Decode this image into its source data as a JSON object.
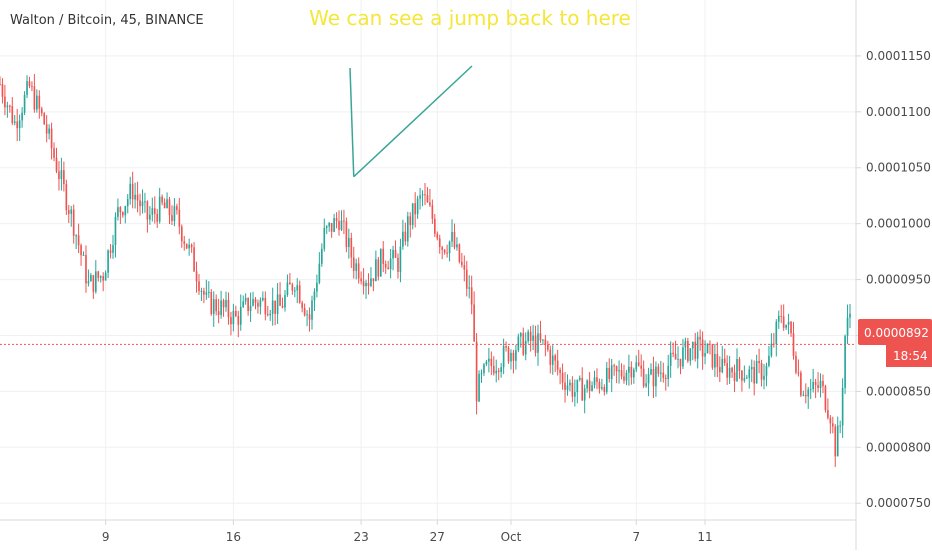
{
  "header": {
    "symbol_title": "Walton / Bitcoin, 45, BINANCE"
  },
  "annotation": {
    "text": "We can see a jump back to here",
    "color": "#f5e63a",
    "arrow_color": "#3aa596"
  },
  "price_scale": {
    "current_price_label": "0.0000892",
    "countdown_label": "18:54",
    "current_price": 8.92e-05,
    "label_bg": "#ef5350",
    "line_color": "#ef5350"
  },
  "colors": {
    "up": "#26a69a",
    "down": "#ef5350",
    "grid": "#eef0f3",
    "axis_text": "#4a4a4a",
    "divider": "#d6d8dc"
  },
  "chart_data": {
    "type": "candlestick",
    "title": "Walton / Bitcoin, 45, BINANCE",
    "x_tick_labels": [
      "9",
      "16",
      "23",
      "27",
      "Oct",
      "7",
      "11"
    ],
    "y_tick_labels": [
      "0.0001150",
      "0.0001100",
      "0.0001050",
      "0.0001000",
      "0.0000950",
      "0.0000900",
      "0.0000850",
      "0.0000800",
      "0.0000750"
    ],
    "y_ticks": [
      0.000115,
      0.00011,
      0.000105,
      0.0001,
      9.5e-05,
      9e-05,
      8.5e-05,
      8e-05,
      7.5e-05
    ],
    "ylim": [
      7.35e-05,
      0.00012
    ],
    "grid": true,
    "price_path": [
      [
        0,
        0.0001125
      ],
      [
        3,
        0.000109
      ],
      [
        6,
        0.0001122
      ],
      [
        9,
        0.000109
      ],
      [
        12,
        0.0001045
      ],
      [
        15,
        0.0001
      ],
      [
        18,
        9.45e-05
      ],
      [
        21,
        9.55e-05
      ],
      [
        24,
        0.000101
      ],
      [
        27,
        0.000103
      ],
      [
        30,
        0.0001005
      ],
      [
        33,
        0.0001015
      ],
      [
        36,
        0.0001005
      ],
      [
        39,
        9.7e-05
      ],
      [
        42,
        9.3e-05
      ],
      [
        45,
        9.25e-05
      ],
      [
        48,
        9.15e-05
      ],
      [
        51,
        9.3e-05
      ],
      [
        54,
        9.3e-05
      ],
      [
        57,
        9.25e-05
      ],
      [
        60,
        9.5e-05
      ],
      [
        63,
        9.15e-05
      ],
      [
        66,
        9.9e-05
      ],
      [
        69,
        0.0001005
      ],
      [
        72,
        9.65e-05
      ],
      [
        75,
        9.5e-05
      ],
      [
        78,
        9.7e-05
      ],
      [
        81,
        9.65e-05
      ],
      [
        83,
        0.0001
      ],
      [
        86,
        0.0001025
      ],
      [
        88,
        0.0001005
      ],
      [
        90,
        9.8e-05
      ],
      [
        92,
        9.85e-05
      ],
      [
        94,
        9.6e-05
      ],
      [
        96,
        9.3e-05
      ],
      [
        97,
        8.5e-05
      ],
      [
        99,
        8.7e-05
      ],
      [
        102,
        8.8e-05
      ],
      [
        105,
        8.9e-05
      ],
      [
        108,
        8.95e-05
      ],
      [
        111,
        8.9e-05
      ],
      [
        114,
        8.65e-05
      ],
      [
        117,
        8.5e-05
      ],
      [
        120,
        8.55e-05
      ],
      [
        123,
        8.6e-05
      ],
      [
        126,
        8.65e-05
      ],
      [
        129,
        8.75e-05
      ],
      [
        132,
        8.6e-05
      ],
      [
        135,
        8.7e-05
      ],
      [
        138,
        8.8e-05
      ],
      [
        141,
        8.9e-05
      ],
      [
        144,
        8.85e-05
      ],
      [
        147,
        8.7e-05
      ],
      [
        150,
        8.7e-05
      ],
      [
        153,
        8.65e-05
      ],
      [
        156,
        8.7e-05
      ],
      [
        159,
        9.2e-05
      ],
      [
        161,
        9e-05
      ],
      [
        163,
        8.55e-05
      ],
      [
        165,
        8.5e-05
      ],
      [
        167,
        8.55e-05
      ],
      [
        169,
        8.3e-05
      ],
      [
        170,
        8e-05
      ],
      [
        171,
        8.2e-05
      ],
      [
        172,
        9e-05
      ],
      [
        173,
        9.2e-05
      ]
    ],
    "period_end": 173,
    "period_tick_positions": [
      21.5,
      47.5,
      73.5,
      89,
      104,
      129.5,
      143.5
    ],
    "marked_peak": {
      "period": 72,
      "price": 0.0001042
    }
  }
}
